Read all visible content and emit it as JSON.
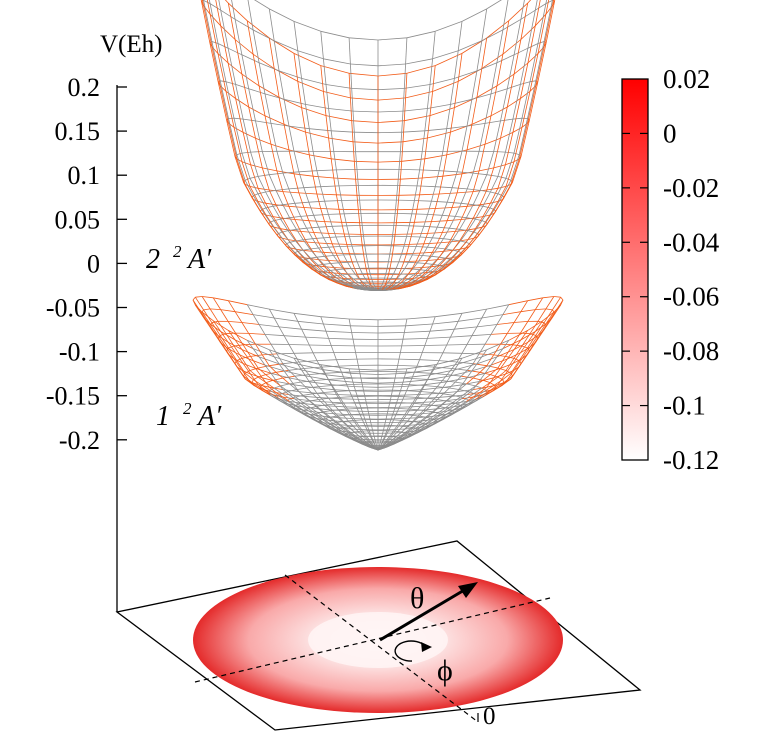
{
  "chart_data": {
    "type": "surface3d",
    "zlabel": "V(Eh)",
    "ztick_labels": [
      "0.2",
      "0.15",
      "0.1",
      "0.05",
      "0",
      "-0.05",
      "-0.1",
      "-0.15",
      "-0.2"
    ],
    "zlim": [
      -0.2,
      0.2
    ],
    "surfaces": [
      {
        "name": "upper",
        "label_number": "2",
        "label_multiplicity": "2",
        "label_symmetry": "A′"
      },
      {
        "name": "lower",
        "label_number": "1",
        "label_multiplicity": "2",
        "label_symmetry": "A′"
      }
    ],
    "colorbar": {
      "tick_labels": [
        "0.02",
        "0",
        "-0.02",
        "-0.04",
        "-0.06",
        "-0.08",
        "-0.1",
        "-0.12"
      ],
      "range": [
        -0.12,
        0.02
      ],
      "color_high": "#ff0000",
      "color_low": "#ffffff"
    },
    "base_plane": {
      "radial_label": "θ",
      "angular_label": "ϕ",
      "axis_tick_label": "0"
    },
    "colors": {
      "mesh_gray": "#8c8c8c",
      "mesh_orange": "#f25c19"
    }
  }
}
